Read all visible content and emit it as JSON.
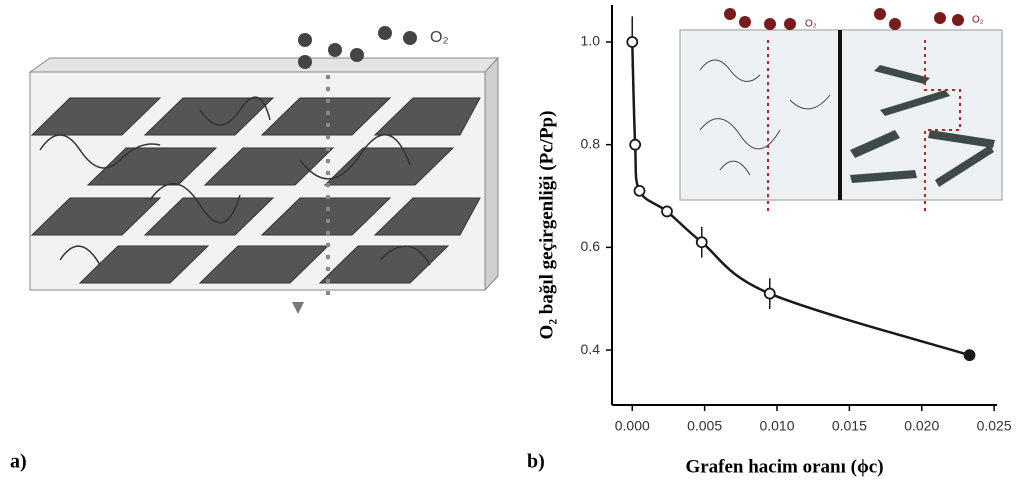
{
  "panels": {
    "a": "a)",
    "b": "b)"
  },
  "illustration": {
    "molecule_label": "O₂",
    "inset_labels": [
      "O₂",
      "O₂"
    ]
  },
  "chart_data": {
    "type": "scatter",
    "x": [
      0,
      0.0002,
      0.0005,
      0.0024,
      0.0048,
      0.0095,
      0.0233
    ],
    "values": [
      1.0,
      0.8,
      0.71,
      0.67,
      0.61,
      0.51,
      0.39
    ],
    "errors": [
      0.05,
      0,
      0,
      0,
      0.03,
      0.03,
      0
    ],
    "color": "#1a1a1a",
    "x_label": "Grafen hacim oranı (ϕc)",
    "y_label": "O₂ bağıl geçirgenliği (Pc/Pp)",
    "xlim": [
      -0.0014,
      0.0252
    ],
    "ylim": [
      0.293,
      1.072
    ],
    "xticks": [
      {
        "value": 0,
        "label": "0.000"
      },
      {
        "value": 0.005,
        "label": "0.005"
      },
      {
        "value": 0.01,
        "label": "0.010"
      },
      {
        "value": 0.015,
        "label": "0.015"
      },
      {
        "value": 0.02,
        "label": "0.020"
      },
      {
        "value": 0.025,
        "label": "0.025"
      }
    ],
    "yticks": [
      0.4,
      0.6,
      0.8,
      {
        "value": 1.0,
        "label": "1.0"
      }
    ]
  }
}
